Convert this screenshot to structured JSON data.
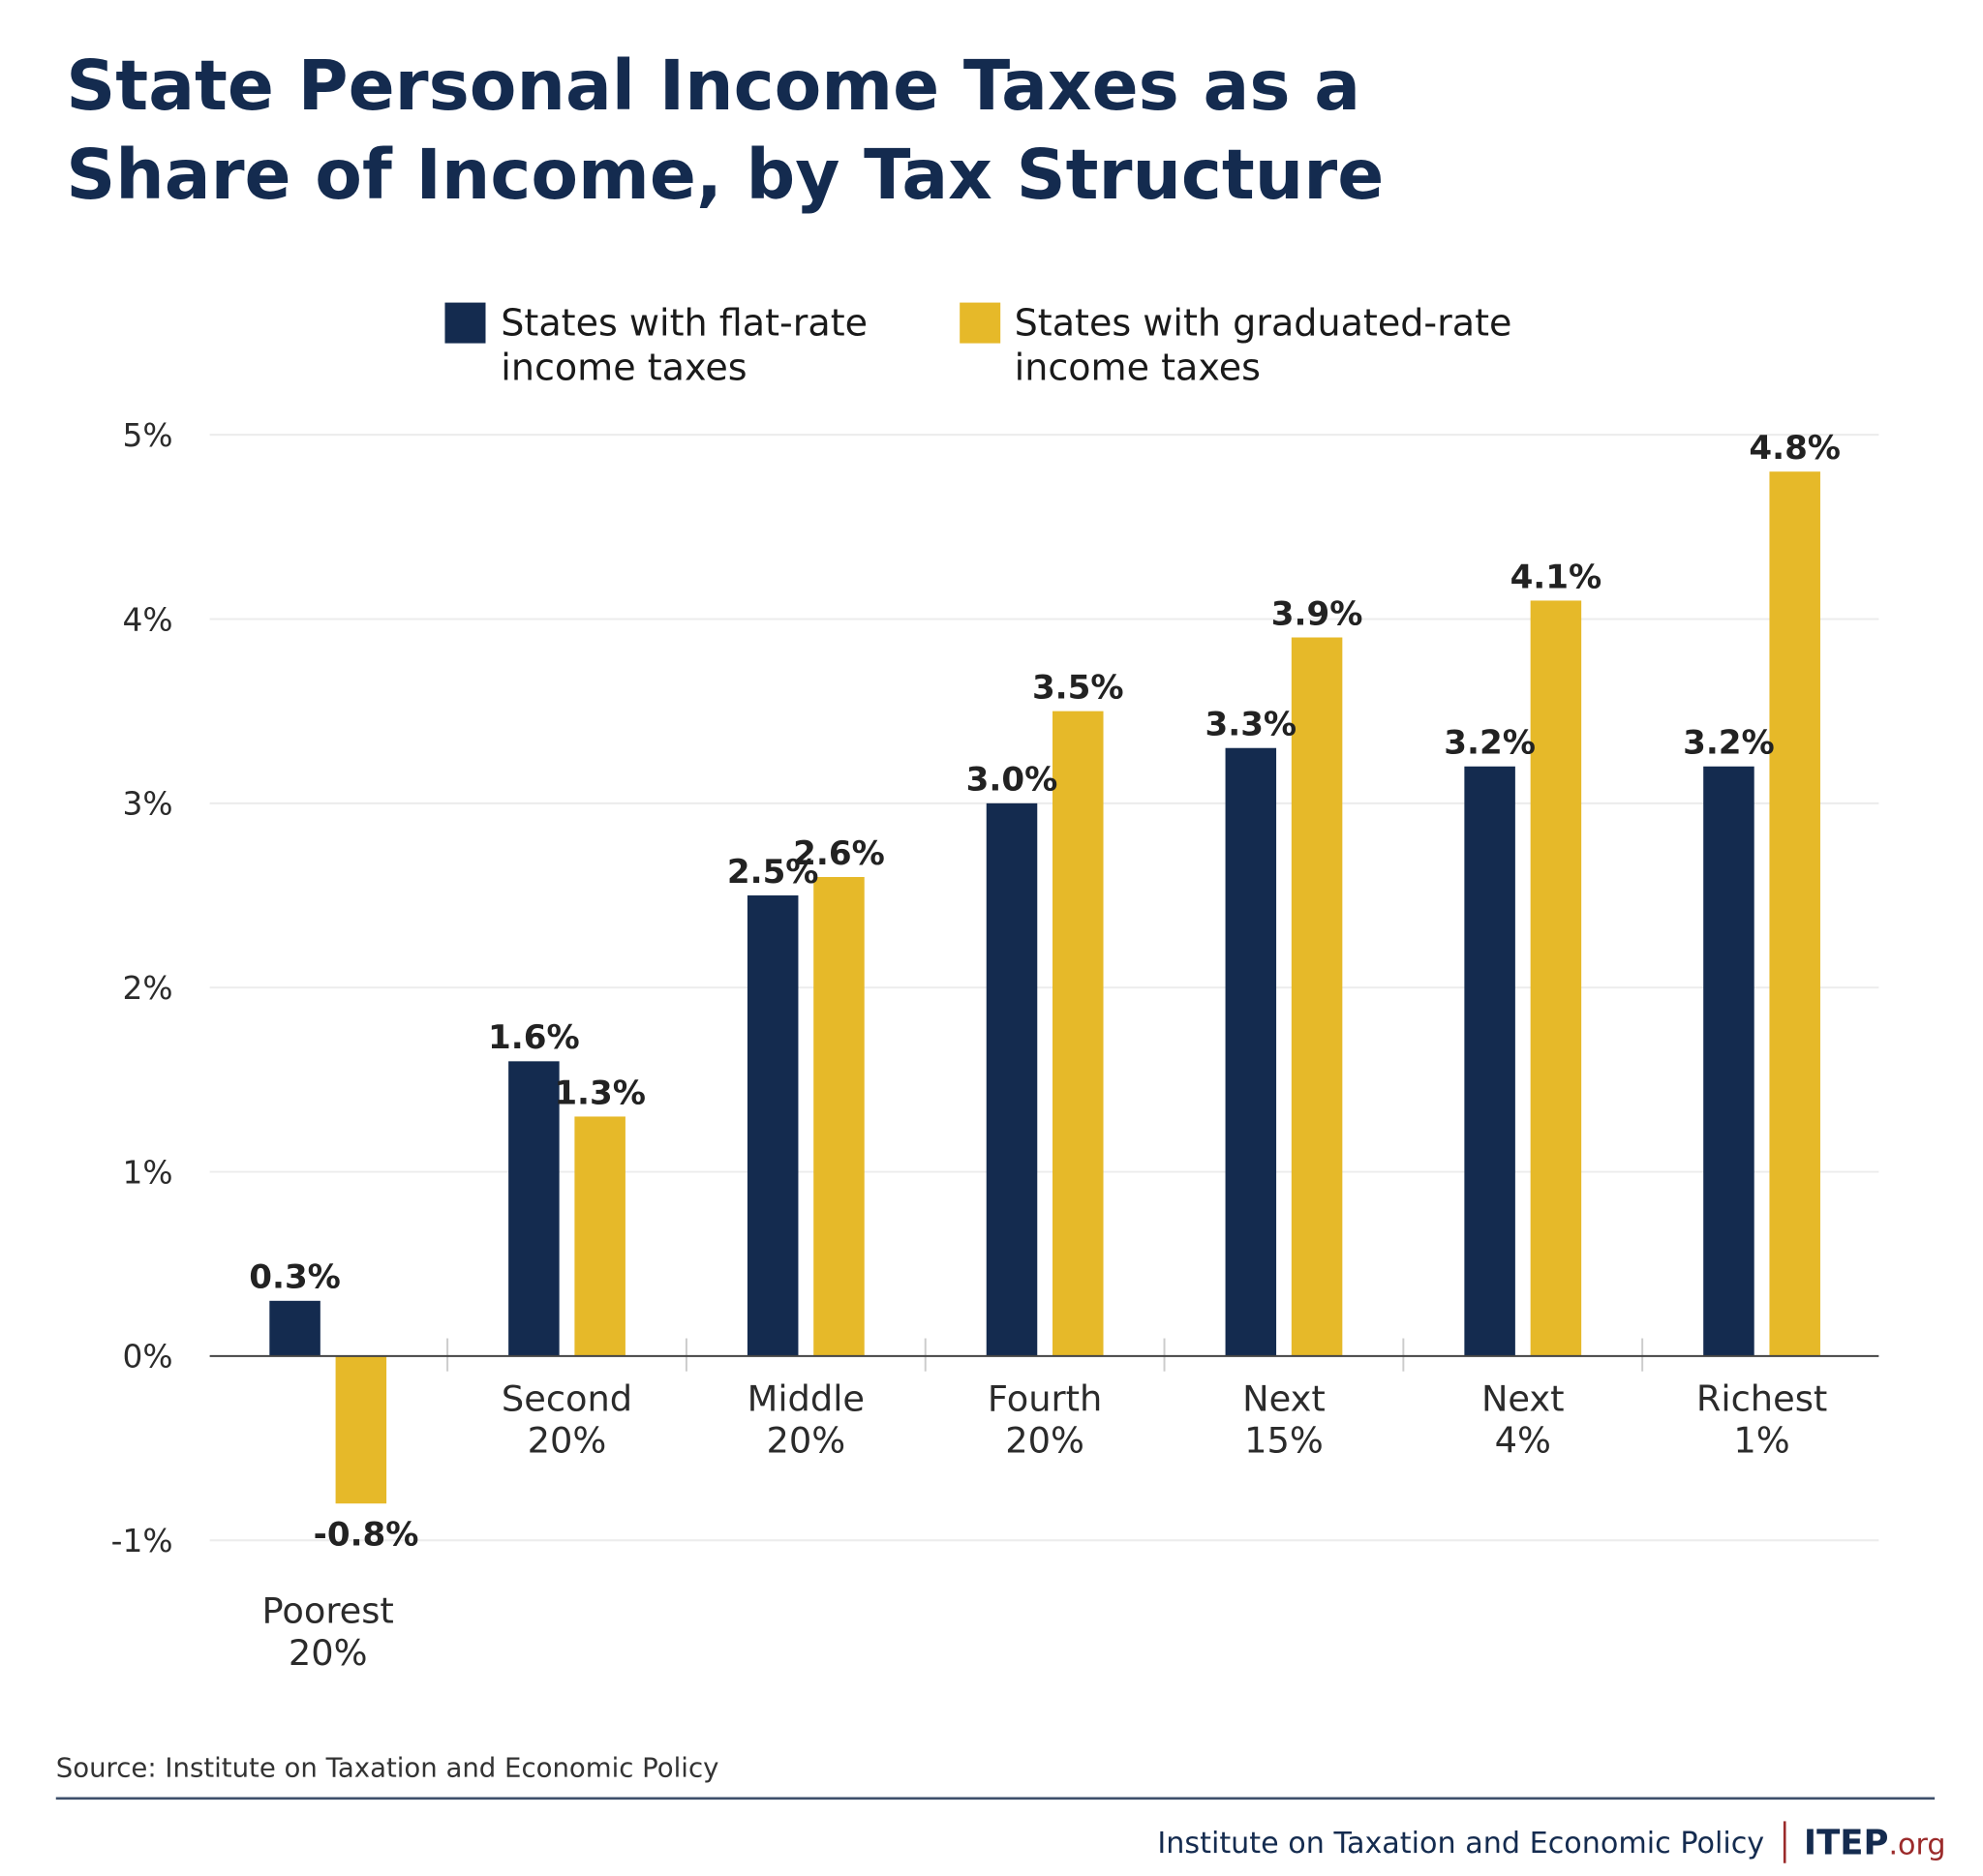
{
  "colors": {
    "flat": "#142b4f",
    "graduated": "#e6b929",
    "title": "#142b4f",
    "accent": "#9b2a2a"
  },
  "chart_data": {
    "type": "bar",
    "title": [
      "State Personal Income Taxes as a",
      "Share of Income, by Tax Structure"
    ],
    "categories": [
      [
        "Poorest",
        "20%"
      ],
      [
        "Second",
        "20%"
      ],
      [
        "Middle",
        "20%"
      ],
      [
        "Fourth",
        "20%"
      ],
      [
        "Next",
        "15%"
      ],
      [
        "Next",
        "4%"
      ],
      [
        "Richest",
        "1%"
      ]
    ],
    "series": [
      {
        "name": [
          "States with flat-rate",
          "income taxes"
        ],
        "values": [
          0.3,
          1.6,
          2.5,
          3.0,
          3.3,
          3.2,
          3.2
        ],
        "labels": [
          "0.3%",
          "1.6%",
          "2.5%",
          "3.0%",
          "3.3%",
          "3.2%",
          "3.2%"
        ]
      },
      {
        "name": [
          "States with graduated-rate",
          "income taxes"
        ],
        "values": [
          -0.8,
          1.3,
          2.6,
          3.5,
          3.9,
          4.1,
          4.8
        ],
        "labels": [
          "-0.8%",
          "1.3%",
          "2.6%",
          "3.5%",
          "3.9%",
          "4.1%",
          "4.8%"
        ]
      }
    ],
    "yticks": [
      -1,
      0,
      1,
      2,
      3,
      4,
      5
    ],
    "ytick_labels": [
      "-1%",
      "0%",
      "1%",
      "2%",
      "3%",
      "4%",
      "5%"
    ],
    "ylim": [
      -1,
      5
    ],
    "grid": true,
    "legend": "top",
    "xlabel": "",
    "ylabel": ""
  },
  "source": "Source: Institute on Taxation and Economic Policy",
  "footer": {
    "org": "Institute on Taxation and Economic Policy",
    "logo_main": "ITEP",
    "logo_suffix": ".org"
  }
}
